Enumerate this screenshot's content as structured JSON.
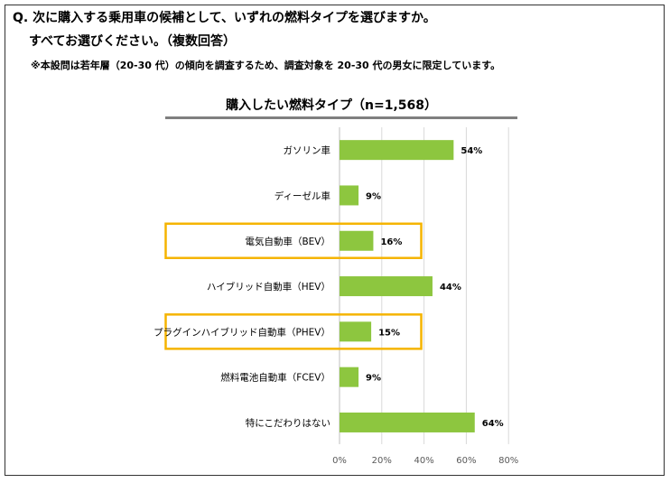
{
  "question": {
    "line1": "Q. 次に購入する乗用車の候補として、いずれの燃料タイプを選びますか。",
    "line2": "すべてお選びください。（複数回答）",
    "note": "※本設問は若年層（20-30 代）の傾向を調査するため、調査対象を 20-30 代の男女に限定しています。"
  },
  "colors": {
    "bar": "#8dc63f",
    "highlight": "#f5b400",
    "grid": "#d9d9d9",
    "title_rule": "#7f7f7f"
  },
  "chart_data": {
    "type": "bar",
    "orientation": "horizontal",
    "title": "購入したい燃料タイプ（n=1,568）",
    "categories": [
      "ガソリン車",
      "ディーゼル車",
      "電気自動車（BEV）",
      "ハイブリッド自動車（HEV）",
      "プラグインハイブリッド自動車（PHEV）",
      "燃料電池自動車（FCEV）",
      "特にこだわりはない"
    ],
    "values": [
      54,
      9,
      16,
      44,
      15,
      9,
      64
    ],
    "value_labels": [
      "54%",
      "9%",
      "16%",
      "44%",
      "15%",
      "9%",
      "64%"
    ],
    "highlighted": [
      "電気自動車（BEV）",
      "プラグインハイブリッド自動車（PHEV）"
    ],
    "xlim": [
      0,
      80
    ],
    "xticks": [
      0,
      20,
      40,
      60,
      80
    ],
    "xtick_labels": [
      "0%",
      "20%",
      "40%",
      "60%",
      "80%"
    ],
    "grid": true,
    "legend": "none"
  }
}
